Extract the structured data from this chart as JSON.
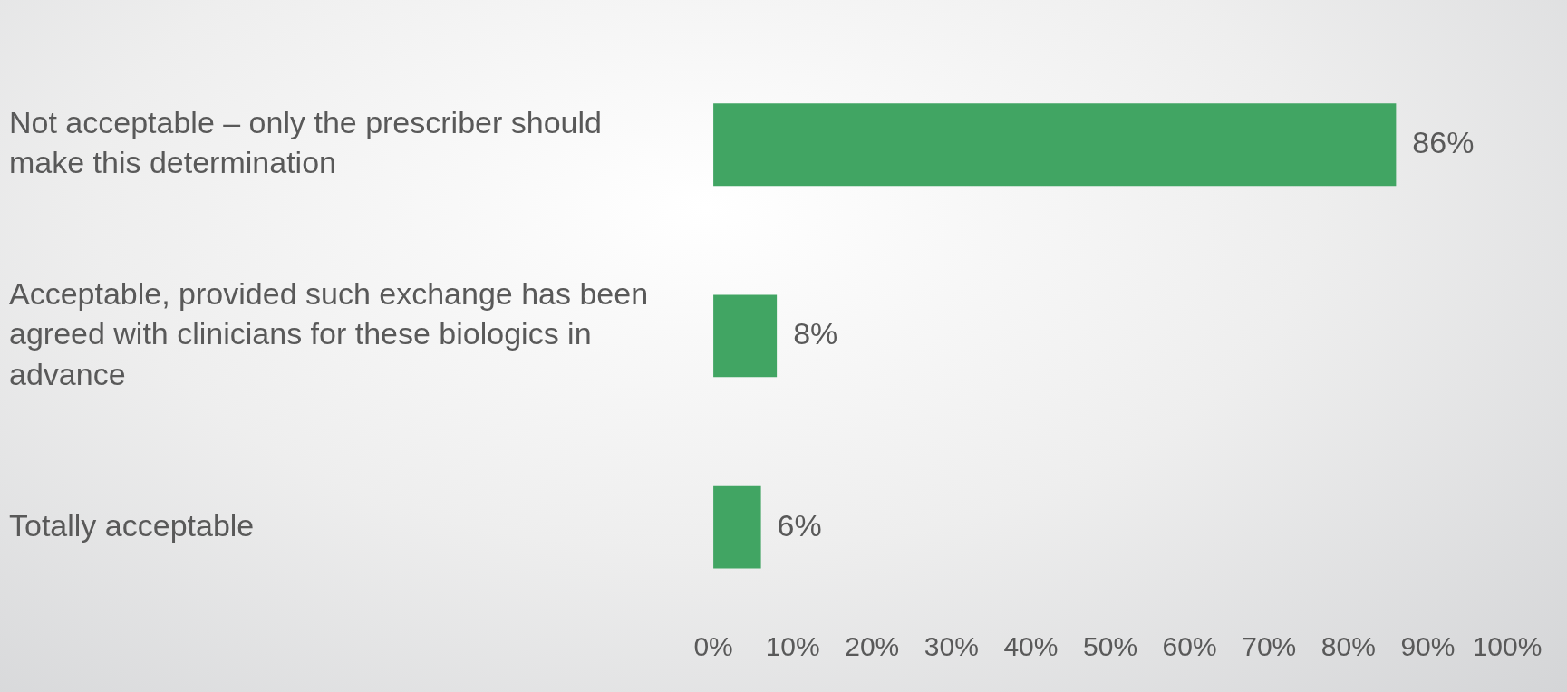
{
  "chart_data": {
    "type": "bar",
    "orientation": "horizontal",
    "categories": [
      "Not acceptable – only the prescriber should make this determination",
      "Acceptable, provided such exchange has been agreed with clinicians for these biologics in advance",
      "Totally acceptable"
    ],
    "values": [
      86,
      8,
      6
    ],
    "value_labels": [
      "86%",
      "8%",
      "6%"
    ],
    "color": "#41a563",
    "xlim": [
      0,
      100
    ],
    "xticks": [
      {
        "value": 0,
        "label": "0%"
      },
      {
        "value": 10,
        "label": "10%"
      },
      {
        "value": 20,
        "label": "20%"
      },
      {
        "value": 30,
        "label": "30%"
      },
      {
        "value": 40,
        "label": "40%"
      },
      {
        "value": 50,
        "label": "50%"
      },
      {
        "value": 60,
        "label": "60%"
      },
      {
        "value": 70,
        "label": "70%"
      },
      {
        "value": 80,
        "label": "80%"
      },
      {
        "value": 90,
        "label": "90%"
      },
      {
        "value": 100,
        "label": "100%"
      }
    ],
    "grid": false,
    "legend": false
  }
}
